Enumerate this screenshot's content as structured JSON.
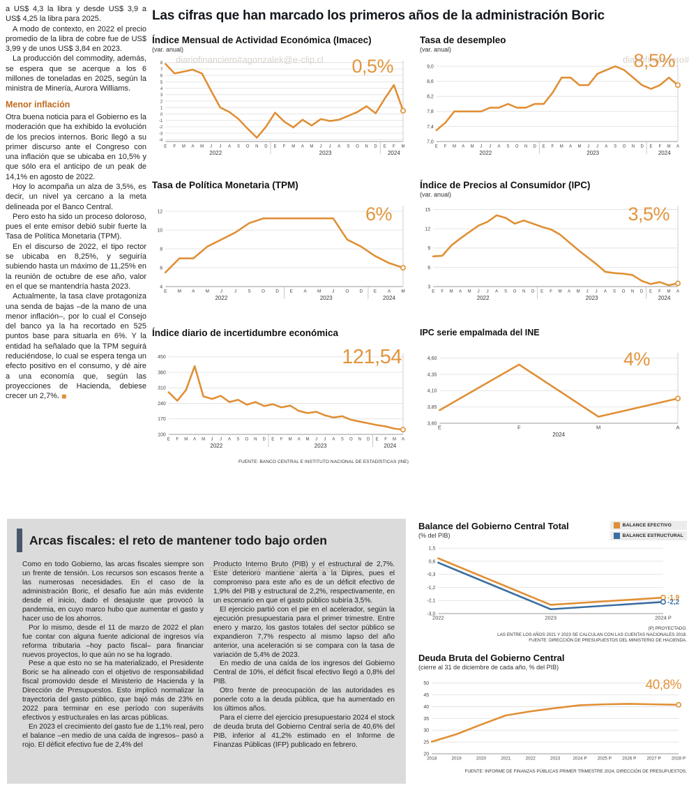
{
  "page": {
    "main_title": "Las cifras que han marcado los primeros años de la administración Boric",
    "watermark": "diariofinanciero#agonzalek@e-clip.cl"
  },
  "colors": {
    "accent_orange": "#E08F35",
    "line_blue": "#3A6EA0",
    "heading_orange": "#C06A1E",
    "panel_bar": "#47586A",
    "panel_bg": "#DBDBDB"
  },
  "article": {
    "top_paragraphs": [
      "a US$ 4,3 la libra y desde US$ 3,9 a US$ 4,25 la libra para 2025.",
      "A modo de contexto, en 2022 el precio promedio de la libra de cobre fue de US$ 3,99 y de unos US$ 3,84 en 2023.",
      "La producción del commodity, además, se espera que se acerque a los 6 millones de toneladas en 2025, según la ministra de Minería, Aurora Williams."
    ],
    "heading": "Menor inflación",
    "body_paragraphs": [
      "Otra buena noticia para el Gobierno es la moderación que ha exhibido la evolución de los precios internos. Boric llegó a su primer discurso ante el Congreso con una inflación que se ubicaba en 10,5% y que sólo era el anticipo de un peak de 14,1% en agosto de 2022.",
      "Hoy lo acompaña un alza de 3,5%, es decir, un nivel ya cercano a la meta delineada por el Banco Central.",
      "Pero esto ha sido un proceso doloroso, pues el ente emisor debió subir fuerte la Tasa de Política Monetaria (TPM).",
      "En el discurso de 2022, el tipo rector se ubicaba en 8,25%, y seguiría subiendo hasta un máximo de 11,25% en la reunión de octubre de ese año, valor en el que se mantendría hasta 2023.",
      "Actualmente, la tasa clave protagoniza una senda de bajas –de la mano de una menor inflación–, por lo cual el Consejo del banco ya la ha recortado en 525 puntos base para situarla en 6%. Y la entidad ha señalado que la TPM seguirá reduciéndose, lo cual se espera tenga un efecto positivo en el consumo, y dé aire a una economía que, según las proyecciones de Hacienda, debiese crecer un 2,7%."
    ],
    "end_mark": "◼"
  },
  "sources": {
    "top": "FUENTE: BANCO CENTRAL E INSTITUTO NACIONAL DE ESTADÍSTICAS (INE)",
    "balance": [
      "(P) PROYECTADO.",
      "LAS ENTRE LOS AÑOS 2021 Y 2023 SE CALCULAN CON LAS CUENTAS NACIONALES 2018.",
      "FUENTE: DIRECCIÓN DE PRESUPUESTOS DEL MINISTERIO DE HACIENDA."
    ],
    "deuda": "FUENTE: INFORME DE FINANZAS PÚBLICAS PRIMER TRIMESTRE 2024, DIRECCIÓN DE PRESUPUESTOS."
  },
  "fiscal": {
    "title": "Arcas fiscales: el reto de mantener todo bajo orden",
    "col1": [
      "Como en todo Gobierno, las arcas fiscales siempre son un frente de tensión. Los recursos son escasos frente a las numerosas necesidades. En el caso de la administración Boric, el desafío fue aún más evidente desde el inicio, dado el desajuste que provocó la pandemia, en cuyo marco hubo que aumentar el gasto y hacer uso de los ahorros.",
      "Por lo mismo, desde el 11 de marzo de 2022 el plan fue contar con alguna fuente adicional de ingresos vía reforma tributaria –hoy pacto fiscal– para financiar nuevos proyectos, lo que aún no se ha logrado.",
      "Pese a que esto no se ha materializado, el Presidente Boric se ha alineado con el objetivo de responsabilidad fiscal promovido desde el Ministerio de Hacienda y la Dirección de Presupuestos. Esto implicó normalizar la trayectoria del gasto público, que bajó más de 23% en 2022 para terminar en ese período con superávits efectivos y estructurales en las arcas públicas.",
      "En 2023 el crecimiento del gasto fue de 1,1% real, pero el balance –en medio de una caída de ingresos– pasó a rojo. El déficit efectivo fue de 2,4% del"
    ],
    "col2": [
      "Producto Interno Bruto (PIB) y el estructural de 2,7%. Este deterioro mantiene alerta a la Dipres, pues el compromiso para este año es de un déficit efectivo de 1,9% del PIB y estructural de 2,2%, respectivamente, en un escenario en que el gasto público subiría 3,5%.",
      "El ejercicio partió con el pie en el acelerador, según la ejecución presupuestaria para el primer trimestre. Entre enero y marzo, los gastos totales del sector público se expandieron 7,7% respecto al mismo lapso del año anterior, una aceleración si se compara con la tasa de variación de 5,4% de 2023.",
      "En medio de una caída de los ingresos del Gobierno Central de 10%, el déficit fiscal efectivo llegó a 0,8% del PIB.",
      "Otro frente de preocupación de las autoridades es ponerle coto a la deuda pública, que ha aumentado en los últimos años.",
      "Para el cierre del ejercicio presupuestario 2024 el stock de deuda bruta del Gobierno Central sería de 40,6% del PIB, inferior al 41,2% estimado en el Informe de Finanzas Públicas (IFP) publicado en febrero."
    ]
  },
  "chart_data": {
    "imacec": {
      "type": "line",
      "title": "Índice Mensual de Actividad Económica (Imacec)",
      "subtitle": "(var. anual)",
      "big_value": "0,5%",
      "ylim": [
        -4.3,
        8.3
      ],
      "yticks": [
        -4,
        -3,
        -2,
        -1,
        0,
        1,
        2,
        3,
        4,
        5,
        6,
        7,
        8
      ],
      "x_labels": [
        "E",
        "F",
        "M",
        "A",
        "M",
        "J",
        "J",
        "A",
        "S",
        "O",
        "N",
        "D",
        "E",
        "F",
        "M",
        "A",
        "M",
        "J",
        "J",
        "A",
        "S",
        "O",
        "N",
        "D",
        "E",
        "F",
        "M"
      ],
      "years": [
        {
          "label": "2022",
          "span": 12
        },
        {
          "label": "2023",
          "span": 12
        },
        {
          "label": "2024",
          "span": 3
        }
      ],
      "series": [
        {
          "color": "#E08F35",
          "values": [
            7.8,
            6.3,
            6.6,
            6.9,
            6.3,
            3.6,
            1.0,
            0.3,
            -0.8,
            -2.3,
            -3.7,
            -2.0,
            0.2,
            -1.2,
            -2.1,
            -0.9,
            -1.8,
            -0.8,
            -1.1,
            -0.9,
            -0.3,
            0.3,
            1.2,
            0.1,
            2.4,
            4.5,
            0.5
          ]
        }
      ]
    },
    "desempleo": {
      "type": "line",
      "title": "Tasa de desempleo",
      "subtitle": "(var. anual)",
      "big_value": "8,5%",
      "ylim": [
        7.0,
        9.15
      ],
      "yticks": [
        7.0,
        7.4,
        7.8,
        8.2,
        8.6,
        9.0
      ],
      "ytick_labels": [
        "7,0",
        "7,4",
        "7,8",
        "8,2",
        "8,6",
        "9,0"
      ],
      "x_labels": [
        "E",
        "F",
        "M",
        "A",
        "M",
        "J",
        "J",
        "A",
        "S",
        "O",
        "N",
        "D",
        "E",
        "F",
        "M",
        "A",
        "M",
        "J",
        "J",
        "A",
        "S",
        "O",
        "N",
        "D",
        "E",
        "F",
        "M",
        "A"
      ],
      "years": [
        {
          "label": "2022",
          "span": 12
        },
        {
          "label": "2023",
          "span": 12
        },
        {
          "label": "2024",
          "span": 4
        }
      ],
      "series": [
        {
          "color": "#E08F35",
          "values": [
            7.3,
            7.5,
            7.8,
            7.8,
            7.8,
            7.8,
            7.9,
            7.9,
            8.0,
            7.9,
            7.9,
            8.0,
            8.0,
            8.3,
            8.7,
            8.7,
            8.5,
            8.5,
            8.8,
            8.9,
            9.0,
            8.9,
            8.7,
            8.5,
            8.4,
            8.5,
            8.7,
            8.5
          ]
        }
      ]
    },
    "tpm": {
      "type": "line",
      "title": "Tasa de Política Monetaria (TPM)",
      "subtitle": "",
      "big_value": "6%",
      "ylim": [
        4,
        12.6
      ],
      "yticks": [
        4,
        6,
        8,
        10,
        12
      ],
      "x_labels": [
        "E",
        "M",
        "A",
        "M",
        "J",
        "J",
        "S",
        "O",
        "D",
        "E",
        "A",
        "M",
        "J",
        "O",
        "D",
        "E",
        "A",
        "M"
      ],
      "years": [
        {
          "label": "2022",
          "span": 9
        },
        {
          "label": "2023",
          "span": 6
        },
        {
          "label": "2024",
          "span": 3
        }
      ],
      "series": [
        {
          "color": "#E08F35",
          "values": [
            5.5,
            7.0,
            7.0,
            8.25,
            9.0,
            9.75,
            10.75,
            11.25,
            11.25,
            11.25,
            11.25,
            11.25,
            11.25,
            9.0,
            8.25,
            7.25,
            6.5,
            6.0
          ]
        }
      ]
    },
    "ipc": {
      "type": "line",
      "title": "Índice de Precios al Consumidor (IPC)",
      "subtitle": "(var. anual)",
      "big_value": "3,5%",
      "ylim": [
        3,
        15.6
      ],
      "yticks": [
        3,
        6,
        9,
        12,
        15
      ],
      "x_labels": [
        "E",
        "F",
        "M",
        "A",
        "M",
        "J",
        "J",
        "A",
        "S",
        "O",
        "N",
        "D",
        "E",
        "F",
        "M",
        "A",
        "M",
        "J",
        "J",
        "A",
        "S",
        "O",
        "N",
        "D",
        "E",
        "F",
        "M",
        "A"
      ],
      "years": [
        {
          "label": "2022",
          "span": 12
        },
        {
          "label": "2023",
          "span": 12
        },
        {
          "label": "2024",
          "span": 4
        }
      ],
      "series": [
        {
          "color": "#E08F35",
          "values": [
            7.7,
            7.8,
            9.4,
            10.5,
            11.5,
            12.5,
            13.1,
            14.1,
            13.7,
            12.8,
            13.3,
            12.8,
            12.3,
            11.9,
            11.1,
            9.9,
            8.7,
            7.6,
            6.5,
            5.3,
            5.1,
            5.0,
            4.8,
            3.9,
            3.4,
            3.7,
            3.2,
            3.5
          ]
        }
      ]
    },
    "incertidumbre": {
      "type": "line",
      "title": "Índice diario de incertidumbre económica",
      "subtitle": "",
      "big_value": "121,54",
      "ylim": [
        100,
        465
      ],
      "yticks": [
        100,
        170,
        240,
        310,
        380,
        450
      ],
      "x_labels": [
        "E",
        "F",
        "M",
        "A",
        "M",
        "J",
        "J",
        "A",
        "S",
        "O",
        "N",
        "D",
        "E",
        "F",
        "M",
        "A",
        "M",
        "J",
        "J",
        "A",
        "S",
        "O",
        "N",
        "D",
        "E",
        "F",
        "M",
        "A"
      ],
      "years": [
        {
          "label": "2022",
          "span": 12
        },
        {
          "label": "2023",
          "span": 12
        },
        {
          "label": "2024",
          "span": 4
        }
      ],
      "series": [
        {
          "color": "#E08F35",
          "values": [
            290,
            252,
            300,
            408,
            272,
            260,
            274,
            246,
            256,
            234,
            246,
            228,
            236,
            222,
            230,
            206,
            196,
            202,
            186,
            176,
            182,
            166,
            158,
            150,
            142,
            136,
            126,
            121.54
          ]
        }
      ]
    },
    "ipc_ine": {
      "type": "line",
      "title": "IPC serie empalmada del INE",
      "subtitle": "",
      "big_value": "4%",
      "ylim": [
        3.6,
        4.68
      ],
      "yticks": [
        3.6,
        3.85,
        4.1,
        4.35,
        4.6
      ],
      "ytick_labels": [
        "3,60",
        "3,85",
        "4,10",
        "4,35",
        "4,60"
      ],
      "x_labels": [
        "E",
        "F",
        "M",
        "A"
      ],
      "years": [
        {
          "label": "2024",
          "span": 4
        }
      ],
      "series": [
        {
          "color": "#E08F35",
          "values": [
            3.8,
            4.5,
            3.7,
            3.98
          ]
        }
      ]
    },
    "balance": {
      "type": "line",
      "title": "Balance del Gobierno Central Total",
      "subtitle": "(% del PIB)",
      "big_value": "",
      "guide": false,
      "ylim": [
        -3.0,
        1.6
      ],
      "yticks": [
        -3.0,
        -2.1,
        -1.2,
        -0.3,
        0.6,
        1.5
      ],
      "ytick_labels": [
        "-3,0",
        "-2,1",
        "-1,2",
        "-0,3",
        "0,6",
        "1,5"
      ],
      "x_labels": [
        "2022",
        "2023",
        "2024 P"
      ],
      "series": [
        {
          "name": "BALANCE EFECTIVO",
          "color": "#E08F35",
          "end_label": "-1,9",
          "values": [
            0.8,
            -2.4,
            -1.9
          ]
        },
        {
          "name": "BALANCE ESTRUCTURAL",
          "color": "#3A6EA0",
          "end_label": "-2,2",
          "values": [
            0.5,
            -2.7,
            -2.2
          ]
        }
      ]
    },
    "deuda": {
      "type": "line",
      "title": "Deuda Bruta del Gobierno Central",
      "subtitle": "(cierre al 31 de diciembre de cada año, % del PIB)",
      "big_value": "40,8%",
      "guide": false,
      "ylim": [
        20,
        52
      ],
      "yticks": [
        20,
        25,
        30,
        35,
        40,
        45,
        50
      ],
      "x_labels": [
        "2018",
        "2019",
        "2020",
        "2021",
        "2022",
        "2023",
        "2024 P",
        "2025 P",
        "2026 P",
        "2027 P",
        "2028 P"
      ],
      "series": [
        {
          "color": "#E08F35",
          "values": [
            25.1,
            28.3,
            32.4,
            36.3,
            38.0,
            39.4,
            40.6,
            41.0,
            41.2,
            41.0,
            40.8
          ]
        }
      ]
    }
  }
}
